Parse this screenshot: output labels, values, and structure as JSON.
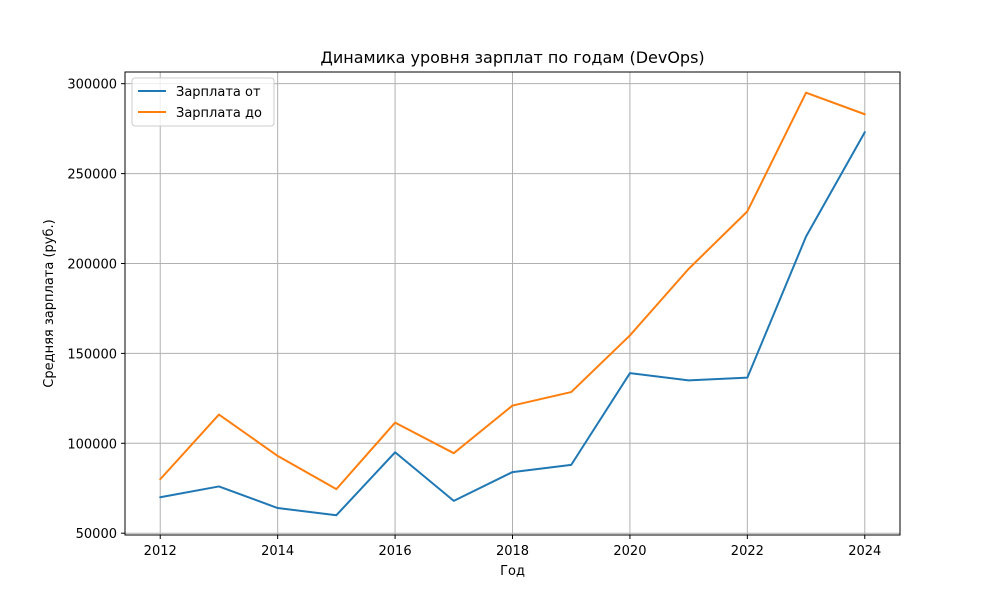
{
  "chart_data": {
    "type": "line",
    "title": "Динамика уровня зарплат по годам (DevOps)",
    "xlabel": "Год",
    "ylabel": "Средняя зарплата (руб.)",
    "xlim": [
      2011.4,
      2024.6
    ],
    "ylim": [
      49000,
      306500
    ],
    "xticks": [
      2012,
      2014,
      2016,
      2018,
      2020,
      2022,
      2024
    ],
    "yticks": [
      50000,
      100000,
      150000,
      200000,
      250000,
      300000
    ],
    "grid": true,
    "legend_position": "top-left",
    "x": [
      2012,
      2013,
      2014,
      2015,
      2016,
      2017,
      2018,
      2019,
      2020,
      2021,
      2022,
      2023,
      2024
    ],
    "series": [
      {
        "name": "Зарплата от",
        "color": "#1f77b4",
        "values": [
          70000,
          76000,
          64000,
          60000,
          95000,
          68000,
          84000,
          88000,
          139000,
          135000,
          136500,
          215000,
          273000
        ]
      },
      {
        "name": "Зарплата до",
        "color": "#ff7f0e",
        "values": [
          80000,
          116000,
          93000,
          74500,
          111500,
          94500,
          121000,
          128500,
          160000,
          197000,
          229000,
          295000,
          283000
        ]
      }
    ]
  }
}
